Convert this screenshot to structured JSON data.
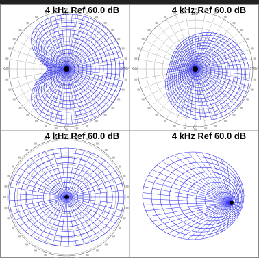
{
  "panels": [
    {
      "title": "4 kHz Ref 60.0 dB",
      "labels": [
        "180°",
        "90°",
        "270°",
        "0°"
      ]
    },
    {
      "title": "4 kHz Ref 60.0 dB",
      "labels": [
        "180°",
        "90°",
        "270°",
        "0°"
      ]
    },
    {
      "title": "4 kHz Ref 60.0 dB"
    },
    {
      "title": "4 kHz Ref 60.0 dB"
    }
  ]
}
